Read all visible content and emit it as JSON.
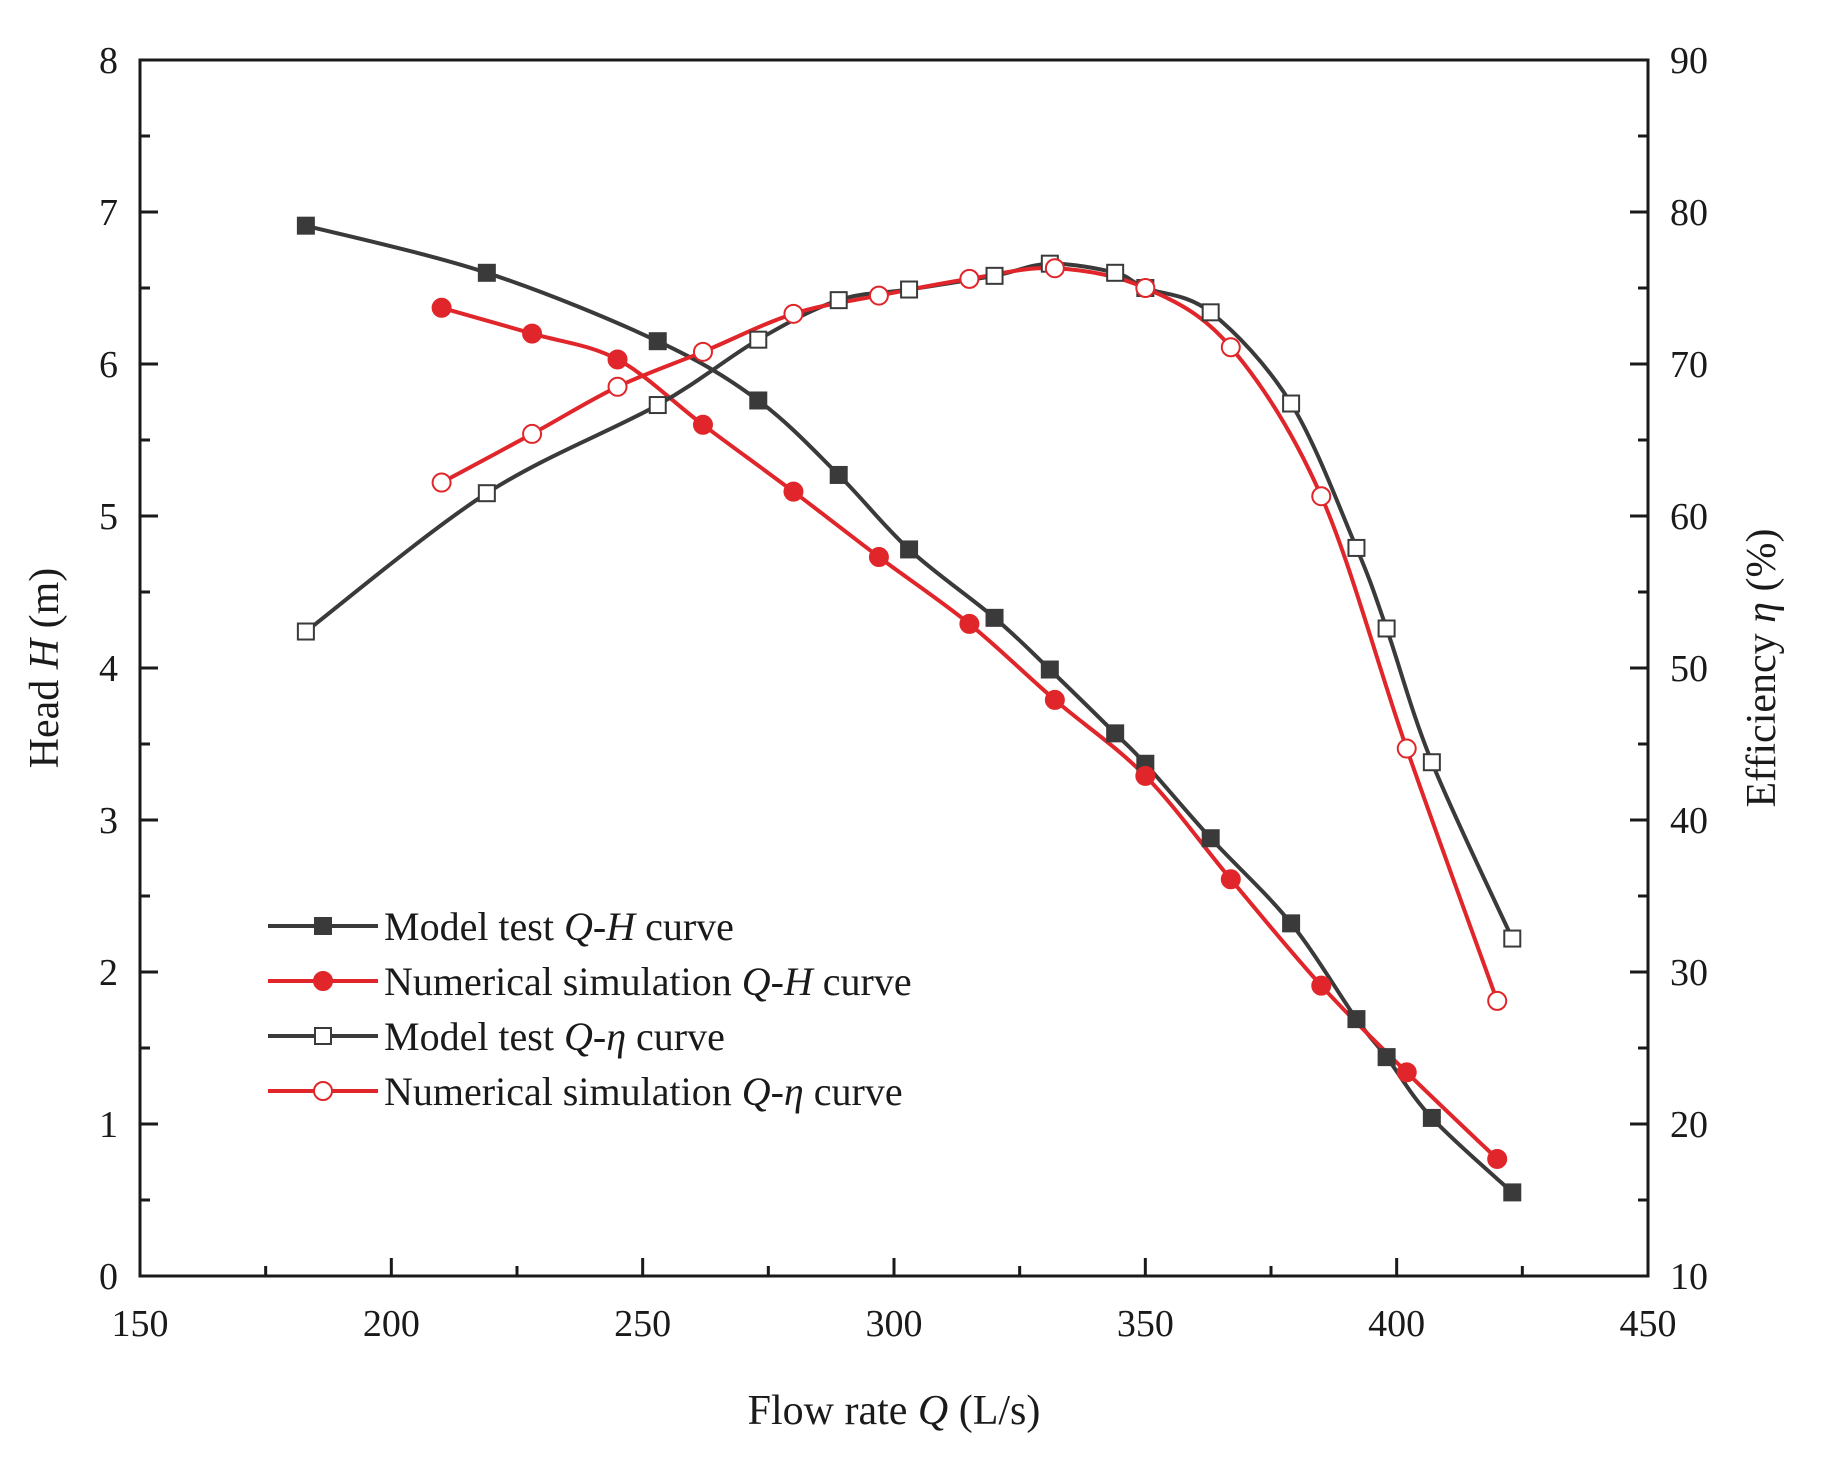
{
  "chart_data": {
    "type": "line",
    "x_axis": {
      "label": "Flow rate",
      "symbol": "Q",
      "unit": "(L/s)",
      "range": [
        150,
        450
      ],
      "ticks": [
        150,
        200,
        250,
        300,
        350,
        400,
        450
      ],
      "tick_labels": [
        "150",
        "200",
        "250",
        "300",
        "350",
        "400",
        "450"
      ]
    },
    "y_left": {
      "label": "Head",
      "symbol": "H",
      "unit": "(m)",
      "range": [
        0,
        8
      ],
      "ticks": [
        0,
        1,
        2,
        3,
        4,
        5,
        6,
        7,
        8
      ],
      "tick_labels": [
        "0",
        "1",
        "2",
        "3",
        "4",
        "5",
        "6",
        "7",
        "8"
      ]
    },
    "y_right": {
      "label": "Efficiency",
      "symbol": "η",
      "unit": "(%)",
      "range": [
        10,
        90
      ],
      "ticks": [
        10,
        20,
        30,
        40,
        50,
        60,
        70,
        80,
        90
      ],
      "tick_labels": [
        "10",
        "20",
        "30",
        "40",
        "50",
        "60",
        "70",
        "80",
        "90"
      ]
    },
    "grid": false,
    "legend_position": "bottom-left",
    "series": [
      {
        "id": "model-qh",
        "name_pre": "Model test ",
        "name_italic": "Q-H",
        "name_post": " curve",
        "axis": "left",
        "color": "#3a3a3a",
        "marker": "square-filled",
        "x": [
          183,
          219,
          253,
          273,
          289,
          303,
          320,
          331,
          344,
          350,
          363,
          379,
          392,
          398,
          407,
          423
        ],
        "y": [
          6.91,
          6.6,
          6.15,
          5.76,
          5.27,
          4.78,
          4.33,
          3.99,
          3.57,
          3.37,
          2.88,
          2.32,
          1.69,
          1.44,
          1.04,
          0.55
        ]
      },
      {
        "id": "sim-qh",
        "name_pre": "Numerical simulation ",
        "name_italic": "Q-H",
        "name_post": " curve",
        "axis": "left",
        "color": "#e0262a",
        "marker": "circle-filled",
        "x": [
          210,
          228,
          245,
          262,
          280,
          297,
          315,
          332,
          350,
          367,
          385,
          402,
          420
        ],
        "y": [
          6.37,
          6.2,
          6.03,
          5.6,
          5.16,
          4.73,
          4.29,
          3.79,
          3.29,
          2.61,
          1.91,
          1.34,
          0.77
        ]
      },
      {
        "id": "model-qeta",
        "name_pre": "Model test ",
        "name_italic": "Q-η",
        "name_post": " curve",
        "axis": "right",
        "color": "#3a3a3a",
        "marker": "square-open",
        "x": [
          183,
          219,
          253,
          273,
          289,
          303,
          320,
          331,
          344,
          350,
          363,
          379,
          392,
          398,
          407,
          423
        ],
        "y": [
          52.4,
          61.5,
          67.3,
          71.6,
          74.2,
          74.9,
          75.8,
          76.6,
          76.0,
          75.0,
          73.4,
          67.4,
          57.9,
          52.6,
          43.8,
          32.2
        ]
      },
      {
        "id": "sim-qeta",
        "name_pre": "Numerical simulation ",
        "name_italic": "Q-η",
        "name_post": " curve",
        "axis": "right",
        "color": "#e0262a",
        "marker": "circle-open",
        "x": [
          210,
          228,
          245,
          262,
          280,
          297,
          315,
          332,
          350,
          367,
          385,
          402,
          420
        ],
        "y": [
          62.2,
          65.4,
          68.5,
          70.8,
          73.3,
          74.5,
          75.6,
          76.3,
          75.0,
          71.1,
          61.3,
          44.7,
          28.1
        ]
      }
    ]
  }
}
